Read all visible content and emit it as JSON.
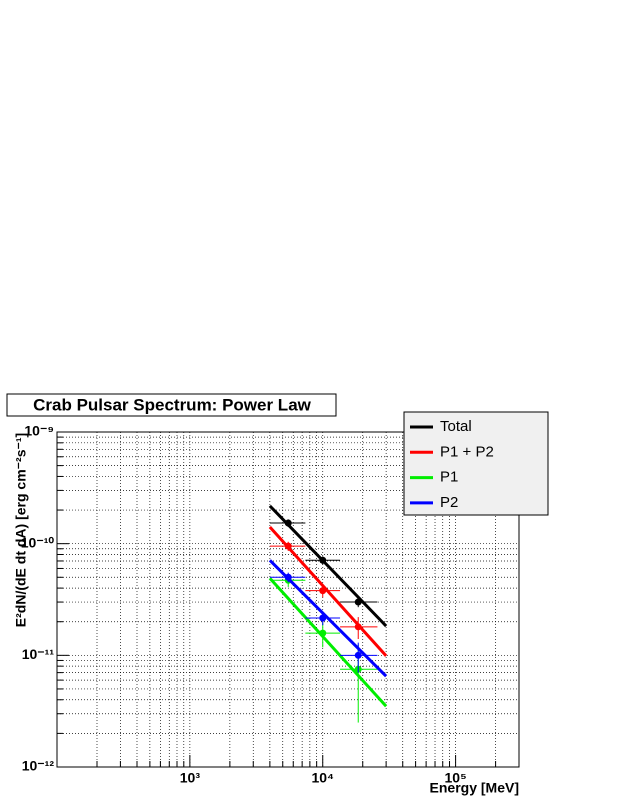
{
  "chart_data": {
    "type": "scatter",
    "title": "Crab Pulsar Spectrum: Power Law",
    "x_label": "Energy [MeV]",
    "y_label": "E²dN/(dE dt dA) [erg cm⁻²s⁻¹]",
    "log_x": true,
    "log_y": true,
    "grid": true,
    "xlim": [
      100,
      300000
    ],
    "ylim": [
      1e-12,
      1e-09
    ],
    "xticks": [
      {
        "value": 1000,
        "label": "10³"
      },
      {
        "value": 10000,
        "label": "10⁴"
      },
      {
        "value": 100000,
        "label": "10⁵"
      }
    ],
    "yticks": [
      {
        "value": 1e-12,
        "label": "10⁻¹²"
      },
      {
        "value": 1e-11,
        "label": "10⁻¹¹"
      },
      {
        "value": 1e-10,
        "label": "10⁻¹⁰"
      },
      {
        "value": 1e-09,
        "label": "10⁻⁹"
      }
    ],
    "xticks_minor": [
      200,
      300,
      400,
      500,
      600,
      700,
      800,
      900,
      2000,
      3000,
      4000,
      5000,
      6000,
      7000,
      8000,
      9000,
      20000,
      30000,
      40000,
      50000,
      60000,
      70000,
      80000,
      90000,
      200000,
      300000
    ],
    "yticks_minor": [
      2e-12,
      3e-12,
      4e-12,
      5e-12,
      6e-12,
      7e-12,
      8e-12,
      9e-12,
      2e-11,
      3e-11,
      4e-11,
      5e-11,
      6e-11,
      7e-11,
      8e-11,
      9e-11,
      2e-10,
      3e-10,
      4e-10,
      5e-10,
      6e-10,
      7e-10,
      8e-10,
      9e-10
    ],
    "x": [
      5500,
      10000,
      18500
    ],
    "x_low": [
      4000,
      7400,
      13500
    ],
    "x_high": [
      7400,
      13500,
      25800
    ],
    "fit_x": [
      4000,
      30000
    ],
    "series": [
      {
        "name": "Total",
        "color": "#000000",
        "values": [
          1.53e-10,
          7.1e-11,
          3e-11
        ],
        "yerr": [
          1.2e-11,
          6e-12,
          3e-12
        ],
        "fit": [
          2.18e-10,
          1.83e-11
        ]
      },
      {
        "name": "P1 + P2",
        "color": "#ff0000",
        "values": [
          9.5e-11,
          3.8e-11,
          1.8e-11
        ],
        "yerr": [
          9e-12,
          5e-12,
          4e-12
        ],
        "fit": [
          1.41e-10,
          9.9e-12
        ]
      },
      {
        "name": "P1",
        "color": "#00ee00",
        "values": [
          4.7e-11,
          1.58e-11,
          7.5e-12
        ],
        "yerr": [
          6e-12,
          4e-12,
          5e-12
        ],
        "fit": [
          4.9e-11,
          3.5e-12
        ]
      },
      {
        "name": "P2",
        "color": "#0000ff",
        "values": [
          5e-11,
          2.16e-11,
          1e-11
        ],
        "yerr": [
          5e-12,
          3e-12,
          3e-12
        ],
        "fit": [
          7.1e-11,
          6.5e-12
        ]
      }
    ]
  }
}
